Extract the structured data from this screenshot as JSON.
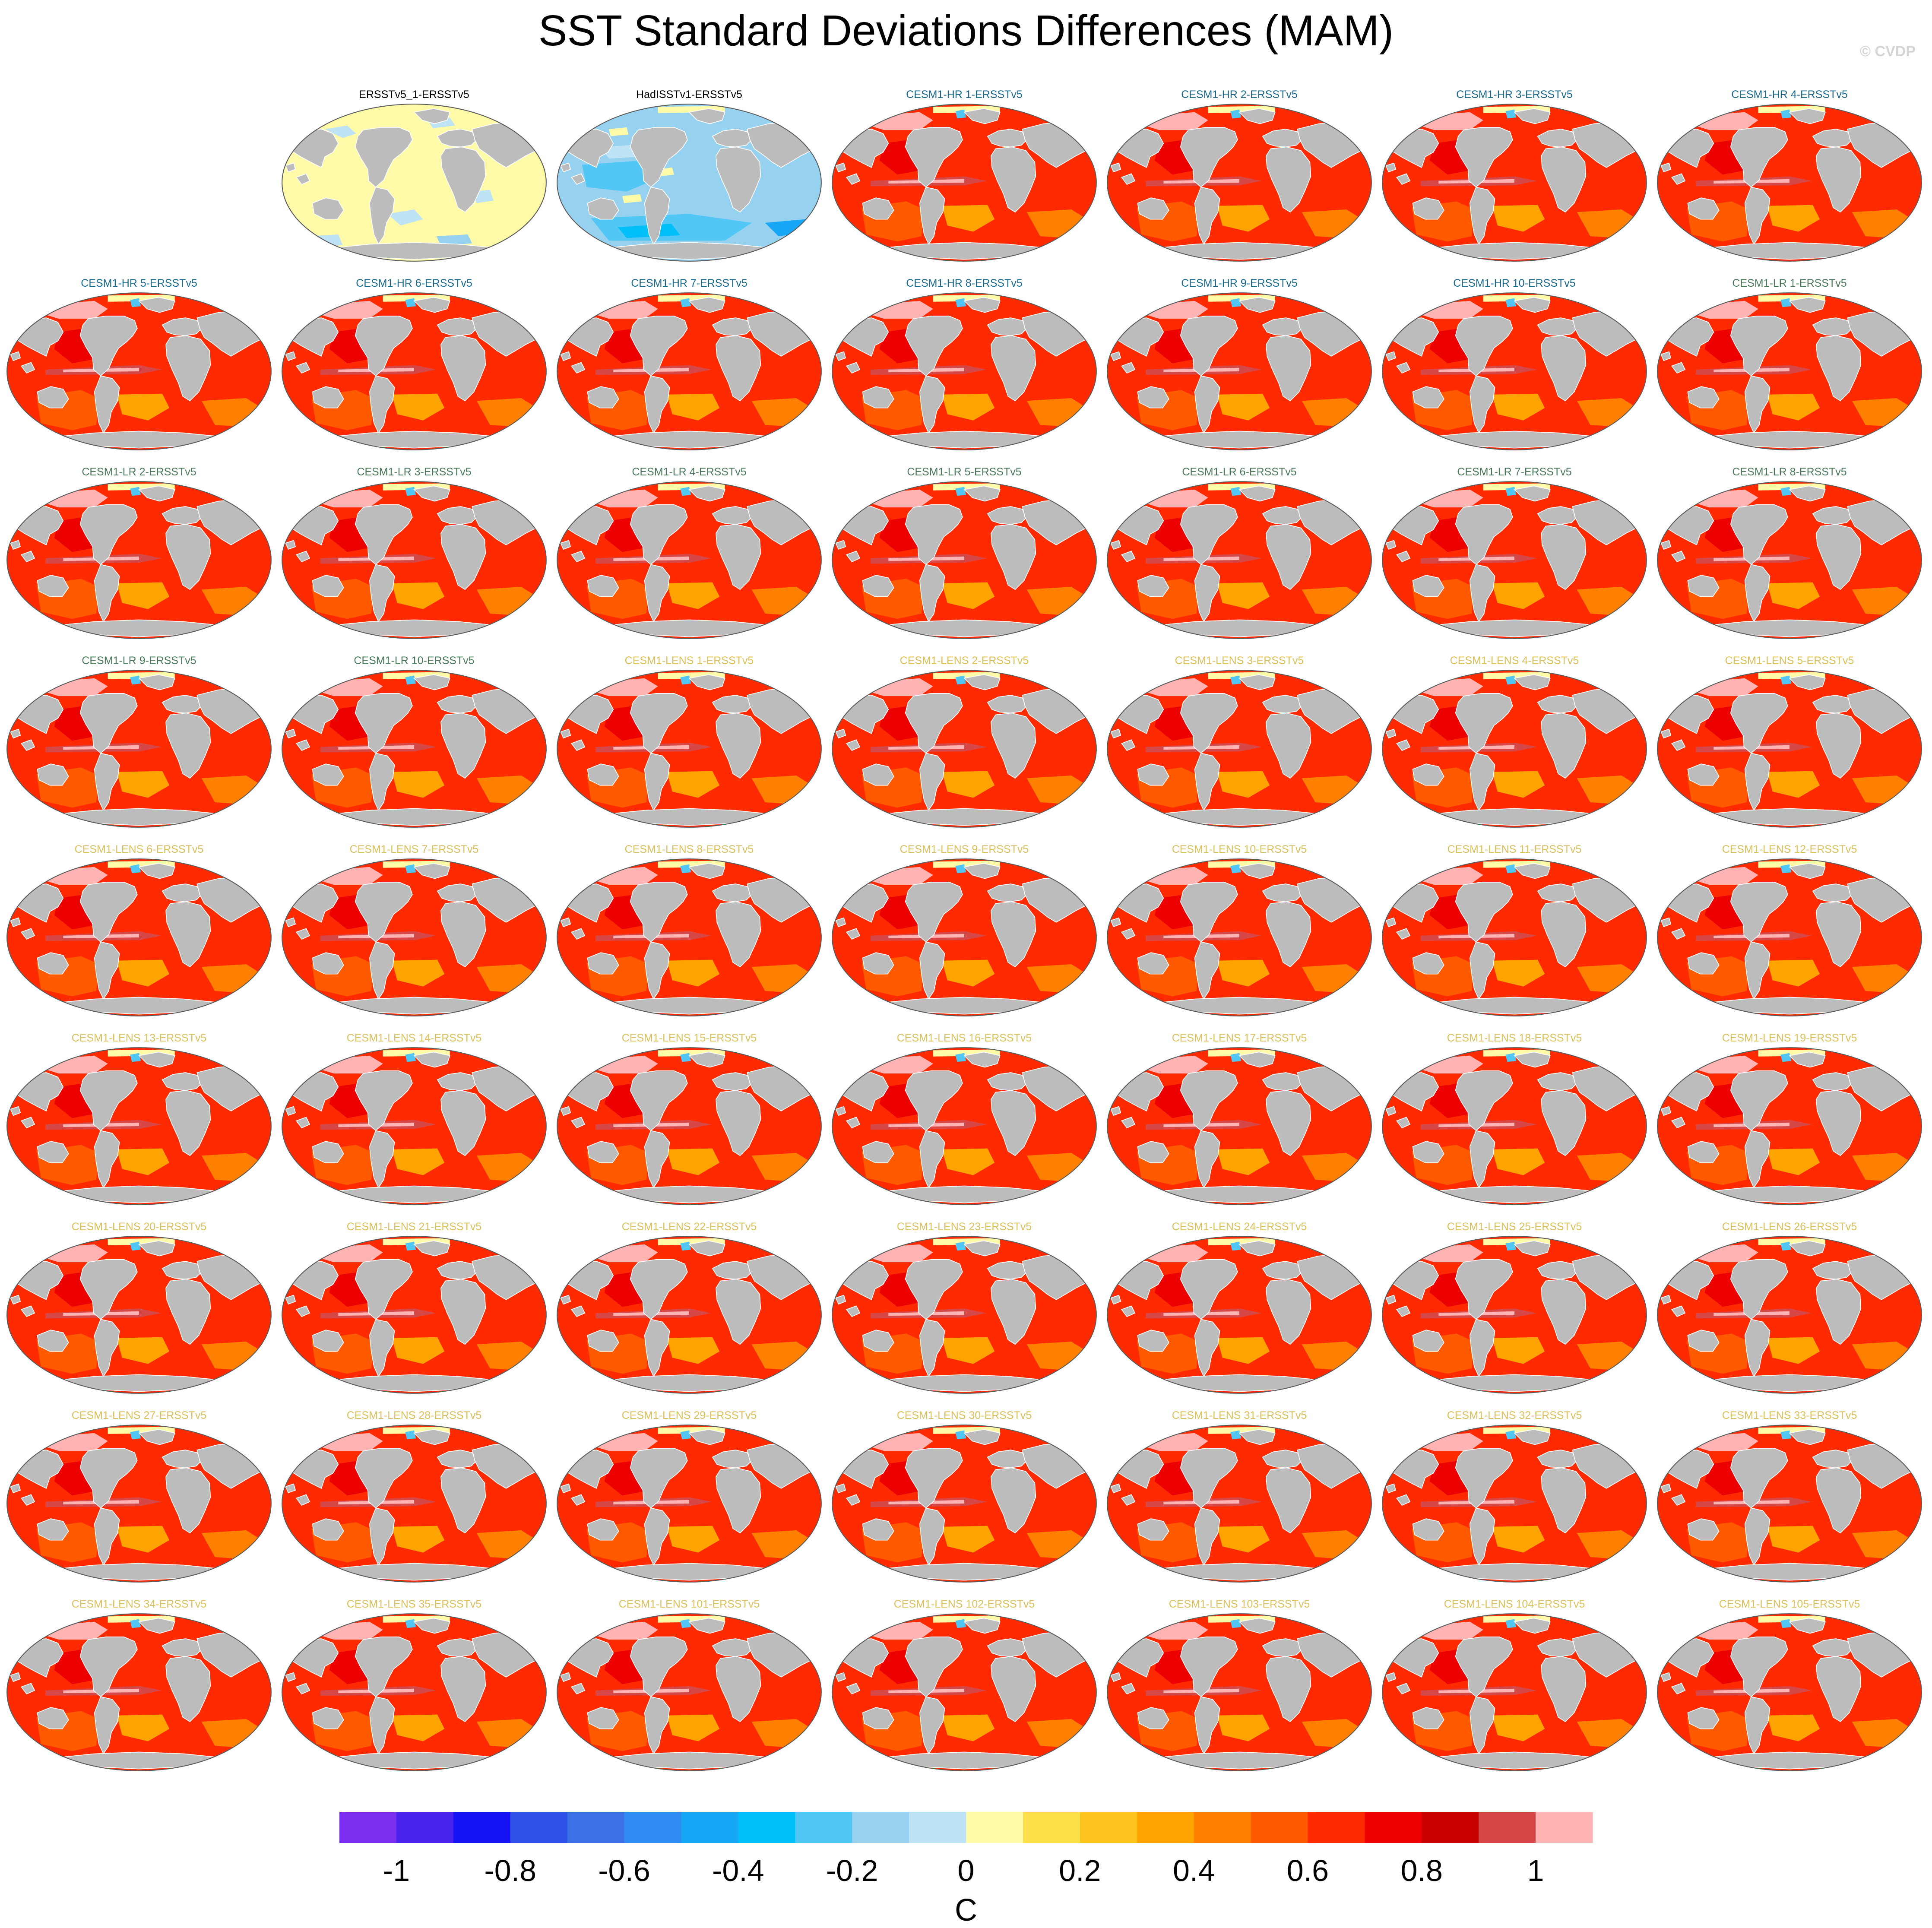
{
  "title": "SST Standard Deviations Differences (MAM)",
  "watermark": "© CVDP",
  "colorbar": {
    "label": "C",
    "ticks": [
      "-1",
      "-0.8",
      "-0.6",
      "-0.4",
      "-0.2",
      "0",
      "0.2",
      "0.4",
      "0.6",
      "0.8",
      "1"
    ],
    "tick_values": [
      -1,
      -0.8,
      -0.6,
      -0.4,
      -0.2,
      0,
      0.2,
      0.4,
      0.6,
      0.8,
      1
    ],
    "range": [
      -1.1,
      1.1
    ],
    "colors": [
      "#7b2df0",
      "#4a22ee",
      "#1414f5",
      "#2e50e6",
      "#3c70e6",
      "#2e8cf2",
      "#18a6f6",
      "#00bff8",
      "#52c6f4",
      "#96d2ef",
      "#bde3f5",
      "#fffaa8",
      "#ffe04a",
      "#ffc31e",
      "#ffa300",
      "#ff8000",
      "#ff5a00",
      "#ff2a00",
      "#ec0000",
      "#c80000",
      "#d64848",
      "#ffb3b3"
    ]
  },
  "palette": {
    "land": "#bcbcbc",
    "ersst_title": "#000000",
    "hr_title": "#1b6a8c",
    "lr_title": "#4a7a5a",
    "lens_title": "#d9c05a"
  },
  "panels": [
    {
      "title": "ERSSTv5_1-ERSSTv5",
      "group": "obs",
      "style": "obs-yellow"
    },
    {
      "title": "HadISSTv1-ERSSTv5",
      "group": "obs",
      "style": "obs-blue"
    },
    {
      "title": "CESM1-HR 1-ERSSTv5",
      "group": "hr",
      "style": "model"
    },
    {
      "title": "CESM1-HR 2-ERSSTv5",
      "group": "hr",
      "style": "model"
    },
    {
      "title": "CESM1-HR 3-ERSSTv5",
      "group": "hr",
      "style": "model"
    },
    {
      "title": "CESM1-HR 4-ERSSTv5",
      "group": "hr",
      "style": "model"
    },
    {
      "title": "CESM1-HR 5-ERSSTv5",
      "group": "hr",
      "style": "model"
    },
    {
      "title": "CESM1-HR 6-ERSSTv5",
      "group": "hr",
      "style": "model"
    },
    {
      "title": "CESM1-HR 7-ERSSTv5",
      "group": "hr",
      "style": "model"
    },
    {
      "title": "CESM1-HR 8-ERSSTv5",
      "group": "hr",
      "style": "model"
    },
    {
      "title": "CESM1-HR 9-ERSSTv5",
      "group": "hr",
      "style": "model"
    },
    {
      "title": "CESM1-HR 10-ERSSTv5",
      "group": "hr",
      "style": "model"
    },
    {
      "title": "CESM1-LR 1-ERSSTv5",
      "group": "lr",
      "style": "model"
    },
    {
      "title": "CESM1-LR 2-ERSSTv5",
      "group": "lr",
      "style": "model"
    },
    {
      "title": "CESM1-LR 3-ERSSTv5",
      "group": "lr",
      "style": "model"
    },
    {
      "title": "CESM1-LR 4-ERSSTv5",
      "group": "lr",
      "style": "model"
    },
    {
      "title": "CESM1-LR 5-ERSSTv5",
      "group": "lr",
      "style": "model"
    },
    {
      "title": "CESM1-LR 6-ERSSTv5",
      "group": "lr",
      "style": "model"
    },
    {
      "title": "CESM1-LR 7-ERSSTv5",
      "group": "lr",
      "style": "model"
    },
    {
      "title": "CESM1-LR 8-ERSSTv5",
      "group": "lr",
      "style": "model"
    },
    {
      "title": "CESM1-LR 9-ERSSTv5",
      "group": "lr",
      "style": "model"
    },
    {
      "title": "CESM1-LR 10-ERSSTv5",
      "group": "lr",
      "style": "model"
    },
    {
      "title": "CESM1-LENS 1-ERSSTv5",
      "group": "lens",
      "style": "model"
    },
    {
      "title": "CESM1-LENS 2-ERSSTv5",
      "group": "lens",
      "style": "model"
    },
    {
      "title": "CESM1-LENS 3-ERSSTv5",
      "group": "lens",
      "style": "model"
    },
    {
      "title": "CESM1-LENS 4-ERSSTv5",
      "group": "lens",
      "style": "model"
    },
    {
      "title": "CESM1-LENS 5-ERSSTv5",
      "group": "lens",
      "style": "model"
    },
    {
      "title": "CESM1-LENS 6-ERSSTv5",
      "group": "lens",
      "style": "model"
    },
    {
      "title": "CESM1-LENS 7-ERSSTv5",
      "group": "lens",
      "style": "model"
    },
    {
      "title": "CESM1-LENS 8-ERSSTv5",
      "group": "lens",
      "style": "model"
    },
    {
      "title": "CESM1-LENS 9-ERSSTv5",
      "group": "lens",
      "style": "model"
    },
    {
      "title": "CESM1-LENS 10-ERSSTv5",
      "group": "lens",
      "style": "model"
    },
    {
      "title": "CESM1-LENS 11-ERSSTv5",
      "group": "lens",
      "style": "model"
    },
    {
      "title": "CESM1-LENS 12-ERSSTv5",
      "group": "lens",
      "style": "model"
    },
    {
      "title": "CESM1-LENS 13-ERSSTv5",
      "group": "lens",
      "style": "model"
    },
    {
      "title": "CESM1-LENS 14-ERSSTv5",
      "group": "lens",
      "style": "model"
    },
    {
      "title": "CESM1-LENS 15-ERSSTv5",
      "group": "lens",
      "style": "model"
    },
    {
      "title": "CESM1-LENS 16-ERSSTv5",
      "group": "lens",
      "style": "model"
    },
    {
      "title": "CESM1-LENS 17-ERSSTv5",
      "group": "lens",
      "style": "model"
    },
    {
      "title": "CESM1-LENS 18-ERSSTv5",
      "group": "lens",
      "style": "model"
    },
    {
      "title": "CESM1-LENS 19-ERSSTv5",
      "group": "lens",
      "style": "model"
    },
    {
      "title": "CESM1-LENS 20-ERSSTv5",
      "group": "lens",
      "style": "model"
    },
    {
      "title": "CESM1-LENS 21-ERSSTv5",
      "group": "lens",
      "style": "model"
    },
    {
      "title": "CESM1-LENS 22-ERSSTv5",
      "group": "lens",
      "style": "model"
    },
    {
      "title": "CESM1-LENS 23-ERSSTv5",
      "group": "lens",
      "style": "model"
    },
    {
      "title": "CESM1-LENS 24-ERSSTv5",
      "group": "lens",
      "style": "model"
    },
    {
      "title": "CESM1-LENS 25-ERSSTv5",
      "group": "lens",
      "style": "model"
    },
    {
      "title": "CESM1-LENS 26-ERSSTv5",
      "group": "lens",
      "style": "model"
    },
    {
      "title": "CESM1-LENS 27-ERSSTv5",
      "group": "lens",
      "style": "model"
    },
    {
      "title": "CESM1-LENS 28-ERSSTv5",
      "group": "lens",
      "style": "model"
    },
    {
      "title": "CESM1-LENS 29-ERSSTv5",
      "group": "lens",
      "style": "model"
    },
    {
      "title": "CESM1-LENS 30-ERSSTv5",
      "group": "lens",
      "style": "model"
    },
    {
      "title": "CESM1-LENS 31-ERSSTv5",
      "group": "lens",
      "style": "model"
    },
    {
      "title": "CESM1-LENS 32-ERSSTv5",
      "group": "lens",
      "style": "model"
    },
    {
      "title": "CESM1-LENS 33-ERSSTv5",
      "group": "lens",
      "style": "model"
    },
    {
      "title": "CESM1-LENS 34-ERSSTv5",
      "group": "lens",
      "style": "model"
    },
    {
      "title": "CESM1-LENS 35-ERSSTv5",
      "group": "lens",
      "style": "model"
    },
    {
      "title": "CESM1-LENS 101-ERSSTv5",
      "group": "lens",
      "style": "model"
    },
    {
      "title": "CESM1-LENS 102-ERSSTv5",
      "group": "lens",
      "style": "model"
    },
    {
      "title": "CESM1-LENS 103-ERSSTv5",
      "group": "lens",
      "style": "model"
    },
    {
      "title": "CESM1-LENS 104-ERSSTv5",
      "group": "lens",
      "style": "model"
    },
    {
      "title": "CESM1-LENS 105-ERSSTv5",
      "group": "lens",
      "style": "model"
    }
  ]
}
